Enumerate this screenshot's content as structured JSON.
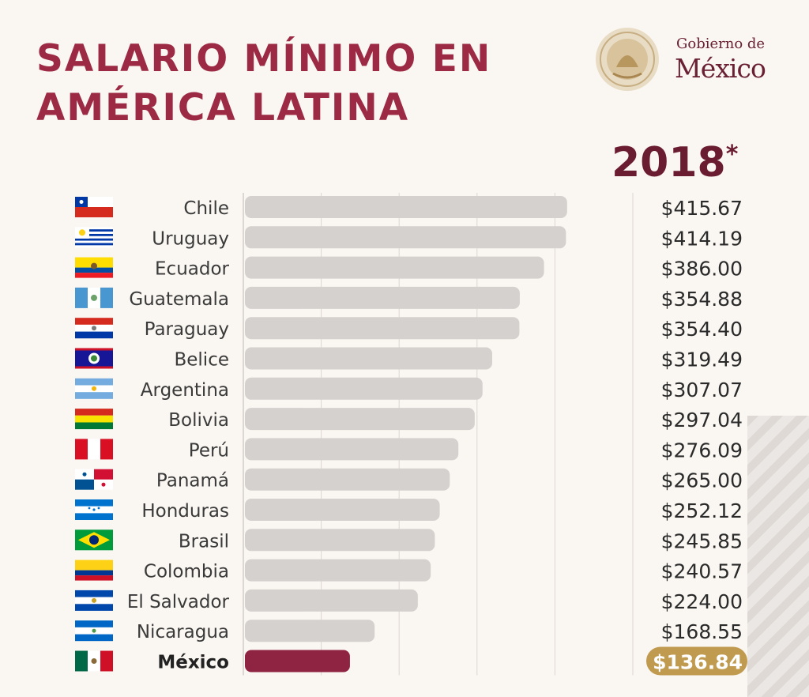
{
  "title": {
    "line1": "SALARIO MÍNIMO EN",
    "line2": "AMÉRICA LATINA"
  },
  "brand": {
    "small": "Gobierno de",
    "big": "México"
  },
  "year": {
    "value": "2018",
    "mark": "*"
  },
  "colors": {
    "title": "#9c2a44",
    "bar": "#d4d1cf",
    "highlight_bar": "#8e2342",
    "highlight_label_bg": "#bf9a4f",
    "text": "#3a3a3a"
  },
  "chart_data": {
    "type": "bar",
    "orientation": "horizontal",
    "title": "SALARIO MÍNIMO EN AMÉRICA LATINA",
    "subtitle": "2018*",
    "xlim": [
      0,
      500
    ],
    "grid": true,
    "highlight": "México",
    "categories": [
      "Chile",
      "Uruguay",
      "Ecuador",
      "Guatemala",
      "Paraguay",
      "Belice",
      "Argentina",
      "Bolivia",
      "Perú",
      "Panamá",
      "Honduras",
      "Brasil",
      "Colombia",
      "El Salvador",
      "Nicaragua",
      "México"
    ],
    "values": [
      415.67,
      414.19,
      386.0,
      354.88,
      354.4,
      319.49,
      307.07,
      297.04,
      276.09,
      265.0,
      252.12,
      245.85,
      240.57,
      224.0,
      168.55,
      136.84
    ],
    "value_labels": [
      "$415.67",
      "$414.19",
      "$386.00",
      "$354.88",
      "$354.40",
      "$319.49",
      "$307.07",
      "$297.04",
      "$276.09",
      "$265.00",
      "$252.12",
      "$245.85",
      "$240.57",
      "$224.00",
      "$168.55",
      "$136.84"
    ],
    "flags": [
      "chile-flag",
      "uruguay-flag",
      "ecuador-flag",
      "guatemala-flag",
      "paraguay-flag",
      "belize-flag",
      "argentina-flag",
      "bolivia-flag",
      "peru-flag",
      "panama-flag",
      "honduras-flag",
      "brazil-flag",
      "colombia-flag",
      "el-salvador-flag",
      "nicaragua-flag",
      "mexico-flag"
    ]
  }
}
